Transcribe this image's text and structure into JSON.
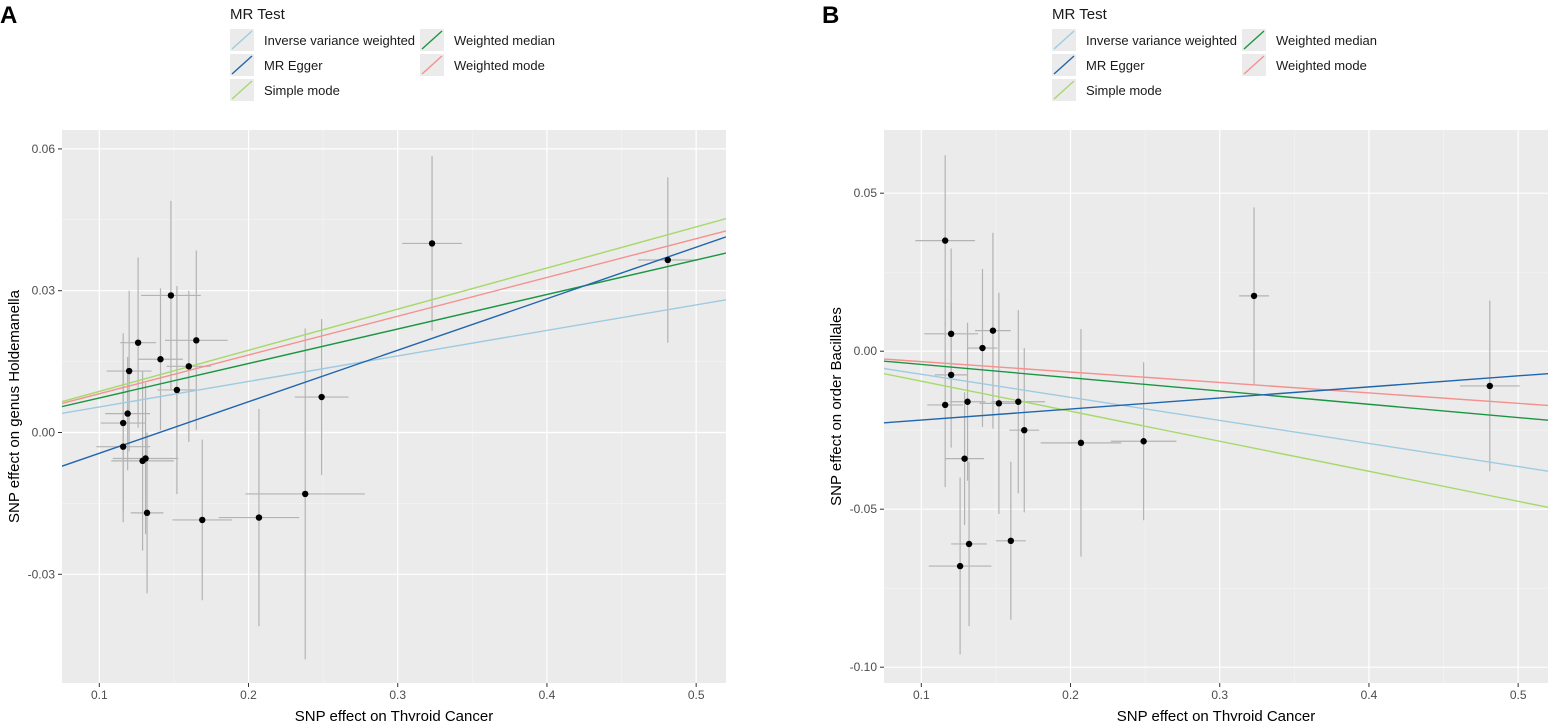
{
  "legend": {
    "title": "MR Test",
    "items": [
      {
        "name": "Inverse variance weighted",
        "color": "#9ecae1"
      },
      {
        "name": "Weighted median",
        "color": "#1a9641"
      },
      {
        "name": "MR Egger",
        "color": "#2166ac"
      },
      {
        "name": "Weighted mode",
        "color": "#f4908e"
      },
      {
        "name": "Simple mode",
        "color": "#a6d96a"
      }
    ]
  },
  "chart_data": [
    {
      "panel": "A",
      "type": "scatter",
      "xlabel": "SNP effect on Thyroid Cancer",
      "ylabel": "SNP effect on genus Holdemanella",
      "xlim": [
        0.075,
        0.52
      ],
      "ylim": [
        -0.053,
        0.064
      ],
      "xticks": [
        0.1,
        0.2,
        0.3,
        0.4,
        0.5
      ],
      "xtick_labels": [
        "0.1",
        "0.2",
        "0.3",
        "0.4",
        "0.5"
      ],
      "yticks": [
        -0.03,
        0.0,
        0.03,
        0.06
      ],
      "ytick_labels": [
        "-0.03",
        "0.00",
        "0.03",
        "0.06"
      ],
      "points": [
        {
          "x": 0.116,
          "y": 0.002,
          "xerr": 0.015,
          "yerr": 0.019
        },
        {
          "x": 0.116,
          "y": -0.003,
          "xerr": 0.018,
          "yerr": 0.016
        },
        {
          "x": 0.119,
          "y": 0.004,
          "xerr": 0.015,
          "yerr": 0.012
        },
        {
          "x": 0.12,
          "y": 0.013,
          "xerr": 0.015,
          "yerr": 0.017
        },
        {
          "x": 0.126,
          "y": 0.019,
          "xerr": 0.012,
          "yerr": 0.018
        },
        {
          "x": 0.129,
          "y": -0.006,
          "xerr": 0.021,
          "yerr": 0.019
        },
        {
          "x": 0.131,
          "y": -0.0055,
          "xerr": 0.022,
          "yerr": 0.016
        },
        {
          "x": 0.132,
          "y": -0.017,
          "xerr": 0.011,
          "yerr": 0.017
        },
        {
          "x": 0.141,
          "y": 0.0155,
          "xerr": 0.015,
          "yerr": 0.015
        },
        {
          "x": 0.148,
          "y": 0.029,
          "xerr": 0.02,
          "yerr": 0.02
        },
        {
          "x": 0.152,
          "y": 0.009,
          "xerr": 0.013,
          "yerr": 0.022
        },
        {
          "x": 0.16,
          "y": 0.014,
          "xerr": 0.015,
          "yerr": 0.016
        },
        {
          "x": 0.165,
          "y": 0.0195,
          "xerr": 0.021,
          "yerr": 0.019
        },
        {
          "x": 0.169,
          "y": -0.0185,
          "xerr": 0.02,
          "yerr": 0.017
        },
        {
          "x": 0.207,
          "y": -0.018,
          "xerr": 0.027,
          "yerr": 0.023
        },
        {
          "x": 0.238,
          "y": -0.013,
          "xerr": 0.04,
          "yerr": 0.035
        },
        {
          "x": 0.249,
          "y": 0.0075,
          "xerr": 0.018,
          "yerr": 0.0165
        },
        {
          "x": 0.323,
          "y": 0.04,
          "xerr": 0.02,
          "yerr": 0.0185
        },
        {
          "x": 0.481,
          "y": 0.0365,
          "xerr": 0.02,
          "yerr": 0.0175
        }
      ],
      "lines": [
        {
          "name": "Inverse variance weighted",
          "intercept": 0.0,
          "slope": 0.054
        },
        {
          "name": "Weighted median",
          "intercept": 0.0,
          "slope": 0.073
        },
        {
          "name": "Weighted mode",
          "intercept": 0.0,
          "slope": 0.082
        },
        {
          "name": "Simple mode",
          "intercept": 0.0,
          "slope": 0.087
        },
        {
          "name": "MR Egger",
          "intercept": -0.0153,
          "slope": 0.109
        }
      ]
    },
    {
      "panel": "B",
      "type": "scatter",
      "xlabel": "SNP effect on Thyroid Cancer",
      "ylabel": "SNP effect on order Bacillales",
      "xlim": [
        0.075,
        0.52
      ],
      "ylim": [
        -0.105,
        0.07
      ],
      "xticks": [
        0.1,
        0.2,
        0.3,
        0.4,
        0.5
      ],
      "xtick_labels": [
        "0.1",
        "0.2",
        "0.3",
        "0.4",
        "0.5"
      ],
      "yticks": [
        -0.1,
        -0.05,
        0.0,
        0.05
      ],
      "ytick_labels": [
        "-0.10",
        "-0.05",
        "0.00",
        "0.05"
      ],
      "points": [
        {
          "x": 0.116,
          "y": -0.017,
          "xerr": 0.012,
          "yerr": 0.026
        },
        {
          "x": 0.116,
          "y": 0.035,
          "xerr": 0.02,
          "yerr": 0.027
        },
        {
          "x": 0.12,
          "y": 0.0055,
          "xerr": 0.018,
          "yerr": 0.027
        },
        {
          "x": 0.12,
          "y": -0.0075,
          "xerr": 0.011,
          "yerr": 0.023
        },
        {
          "x": 0.126,
          "y": -0.068,
          "xerr": 0.021,
          "yerr": 0.028
        },
        {
          "x": 0.129,
          "y": -0.034,
          "xerr": 0.013,
          "yerr": 0.021
        },
        {
          "x": 0.131,
          "y": -0.016,
          "xerr": 0.012,
          "yerr": 0.025
        },
        {
          "x": 0.132,
          "y": -0.061,
          "xerr": 0.012,
          "yerr": 0.026
        },
        {
          "x": 0.141,
          "y": 0.001,
          "xerr": 0.01,
          "yerr": 0.025
        },
        {
          "x": 0.148,
          "y": 0.0065,
          "xerr": 0.012,
          "yerr": 0.031
        },
        {
          "x": 0.152,
          "y": -0.0165,
          "xerr": 0.013,
          "yerr": 0.035
        },
        {
          "x": 0.16,
          "y": -0.06,
          "xerr": 0.01,
          "yerr": 0.025
        },
        {
          "x": 0.165,
          "y": -0.016,
          "xerr": 0.018,
          "yerr": 0.029
        },
        {
          "x": 0.169,
          "y": -0.025,
          "xerr": 0.01,
          "yerr": 0.026
        },
        {
          "x": 0.207,
          "y": -0.029,
          "xerr": 0.027,
          "yerr": 0.036
        },
        {
          "x": 0.249,
          "y": -0.0285,
          "xerr": 0.022,
          "yerr": 0.025
        },
        {
          "x": 0.323,
          "y": 0.0175,
          "xerr": 0.01,
          "yerr": 0.028
        },
        {
          "x": 0.481,
          "y": -0.011,
          "xerr": 0.02,
          "yerr": 0.027
        }
      ],
      "lines": [
        {
          "name": "Inverse variance weighted",
          "intercept": 0.0,
          "slope": -0.073
        },
        {
          "name": "Weighted median",
          "intercept": 0.0,
          "slope": -0.042
        },
        {
          "name": "Weighted mode",
          "intercept": 0.0,
          "slope": -0.033
        },
        {
          "name": "Simple mode",
          "intercept": 0.0,
          "slope": -0.095
        },
        {
          "name": "MR Egger",
          "intercept": -0.0253,
          "slope": 0.035
        }
      ]
    }
  ]
}
